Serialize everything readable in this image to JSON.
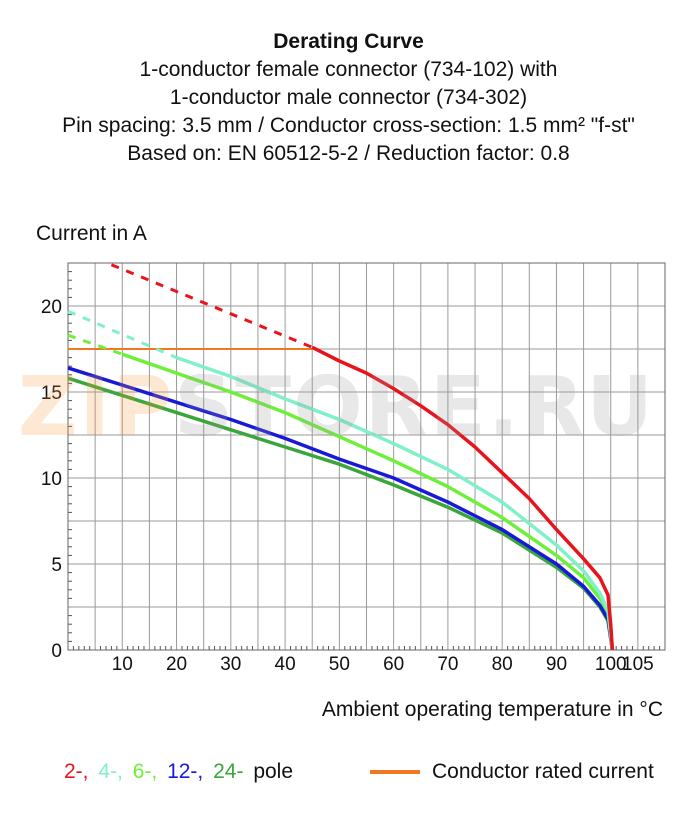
{
  "title": {
    "main": "Derating Curve",
    "line1": "1-conductor female connector (734-102) with",
    "line2": "1-conductor male connector (734-302)",
    "line3": "Pin spacing: 3.5 mm / Conductor cross-section: 1.5 mm² \"f-st\"",
    "line4": "Based on: EN 60512-5-2 / Reduction factor: 0.8"
  },
  "watermark": {
    "part1": "ZIP",
    "part2": "STORE.RU"
  },
  "colors": {
    "p2": "#e8141c",
    "p4": "#7ff0c8",
    "p6": "#6ef03a",
    "p12": "#1818d8",
    "p24": "#3aa63a",
    "rated": "#f07820",
    "grid": "#9a9a9a"
  },
  "legend": {
    "p2": "2-,",
    "p4": "4-,",
    "p6": "6-,",
    "p12": "12-,",
    "p24": "24-",
    "pole": "pole",
    "rated": "Conductor rated current"
  },
  "chart_data": {
    "type": "line",
    "title": "Derating Curve",
    "xlabel": "Ambient operating temperature in °C",
    "ylabel": "Current in A",
    "xlim": [
      0,
      110
    ],
    "ylim": [
      0,
      22.5
    ],
    "xticks": [
      10,
      20,
      30,
      40,
      50,
      60,
      70,
      80,
      90,
      100,
      105
    ],
    "yticks": [
      0,
      5,
      10,
      15,
      20
    ],
    "grid": true,
    "series": [
      {
        "name": "2-",
        "color_key": "p2",
        "dashed": [
          [
            8,
            22.4
          ],
          [
            45,
            17.6
          ]
        ],
        "solid": [
          [
            45,
            17.6
          ],
          [
            50,
            16.8
          ],
          [
            55,
            16.1
          ],
          [
            60,
            15.2
          ],
          [
            65,
            14.2
          ],
          [
            70,
            13.1
          ],
          [
            75,
            11.8
          ],
          [
            80,
            10.3
          ],
          [
            85,
            8.8
          ],
          [
            90,
            7.0
          ],
          [
            95,
            5.3
          ],
          [
            98,
            4.2
          ],
          [
            99.5,
            3.2
          ],
          [
            100,
            1.5
          ],
          [
            100.3,
            0
          ]
        ]
      },
      {
        "name": "4-",
        "color_key": "p4",
        "dashed": [
          [
            0,
            19.7
          ],
          [
            20,
            17.0
          ]
        ],
        "solid": [
          [
            20,
            17.0
          ],
          [
            30,
            15.9
          ],
          [
            40,
            14.6
          ],
          [
            50,
            13.4
          ],
          [
            60,
            12.0
          ],
          [
            70,
            10.5
          ],
          [
            80,
            8.6
          ],
          [
            90,
            6.1
          ],
          [
            95,
            4.6
          ],
          [
            98,
            3.3
          ],
          [
            99.5,
            2.3
          ],
          [
            100.3,
            0
          ]
        ]
      },
      {
        "name": "6-",
        "color_key": "p6",
        "dashed": [
          [
            0,
            18.3
          ],
          [
            10,
            17.2
          ]
        ],
        "solid": [
          [
            10,
            17.2
          ],
          [
            20,
            16.1
          ],
          [
            30,
            15.0
          ],
          [
            40,
            13.8
          ],
          [
            50,
            12.4
          ],
          [
            60,
            11.0
          ],
          [
            70,
            9.5
          ],
          [
            80,
            7.7
          ],
          [
            90,
            5.5
          ],
          [
            95,
            4.2
          ],
          [
            98,
            3.0
          ],
          [
            99.5,
            2.2
          ],
          [
            100.3,
            0
          ]
        ]
      },
      {
        "name": "12-",
        "color_key": "p12",
        "dashed": [],
        "solid": [
          [
            0,
            16.4
          ],
          [
            10,
            15.4
          ],
          [
            20,
            14.4
          ],
          [
            30,
            13.4
          ],
          [
            40,
            12.3
          ],
          [
            50,
            11.1
          ],
          [
            60,
            10.0
          ],
          [
            70,
            8.6
          ],
          [
            80,
            7.0
          ],
          [
            90,
            5.0
          ],
          [
            95,
            3.7
          ],
          [
            98,
            2.6
          ],
          [
            99.5,
            1.8
          ],
          [
            100.3,
            0
          ]
        ]
      },
      {
        "name": "24-",
        "color_key": "p24",
        "dashed": [],
        "solid": [
          [
            0,
            15.8
          ],
          [
            10,
            14.8
          ],
          [
            20,
            13.8
          ],
          [
            30,
            12.8
          ],
          [
            40,
            11.8
          ],
          [
            50,
            10.8
          ],
          [
            60,
            9.6
          ],
          [
            70,
            8.3
          ],
          [
            80,
            6.8
          ],
          [
            90,
            4.8
          ],
          [
            95,
            3.6
          ],
          [
            98,
            2.5
          ],
          [
            99.5,
            1.7
          ],
          [
            100.3,
            0
          ]
        ]
      }
    ],
    "rated_current": {
      "name": "Conductor rated current",
      "color_key": "rated",
      "value": 17.5,
      "x_range": [
        0,
        45
      ]
    }
  }
}
